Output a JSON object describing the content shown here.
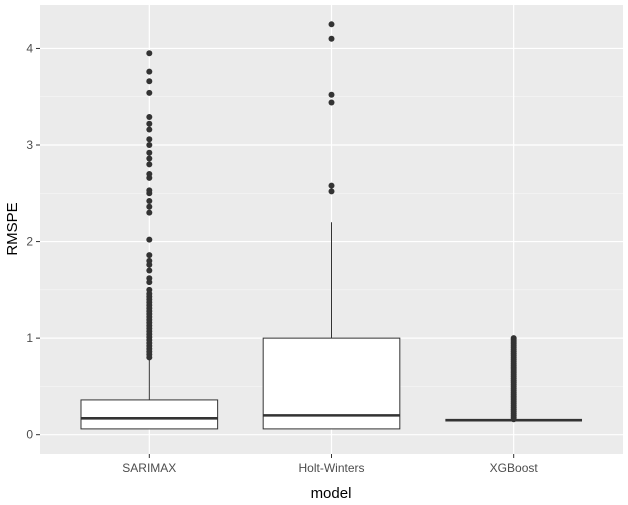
{
  "chart_data": {
    "type": "boxplot",
    "xlabel": "model",
    "ylabel": "RMSPE",
    "categories": [
      "SARIMAX",
      "Holt-Winters",
      "XGBoost"
    ],
    "ylim": [
      -0.2,
      4.45
    ],
    "yticks": [
      0,
      1,
      2,
      3,
      4
    ],
    "grid": true,
    "legend": "none",
    "colors": {
      "panel": "#ebebeb",
      "grid_major": "#ffffff",
      "box_fill": "#ffffff",
      "box_line": "#333333",
      "outlier": "#333333",
      "tick_text": "#4d4d4d"
    },
    "boxes": [
      {
        "category": "SARIMAX",
        "whisker_low": 0.06,
        "q1": 0.06,
        "median": 0.17,
        "q3": 0.36,
        "whisker_high": 0.78,
        "outliers": [
          0.8,
          0.83,
          0.86,
          0.89,
          0.92,
          0.95,
          0.98,
          1.01,
          1.04,
          1.07,
          1.1,
          1.13,
          1.16,
          1.19,
          1.22,
          1.25,
          1.28,
          1.31,
          1.34,
          1.37,
          1.4,
          1.43,
          1.46,
          1.5,
          1.58,
          1.62,
          1.7,
          1.76,
          1.8,
          1.86,
          2.02,
          2.3,
          2.36,
          2.42,
          2.5,
          2.53,
          2.66,
          2.7,
          2.8,
          2.86,
          2.92,
          3.0,
          3.06,
          3.16,
          3.22,
          3.29,
          3.54,
          3.66,
          3.76,
          3.95
        ]
      },
      {
        "category": "Holt-Winters",
        "whisker_low": 0.06,
        "q1": 0.06,
        "median": 0.2,
        "q3": 1.0,
        "whisker_high": 2.2,
        "outliers": [
          2.52,
          2.58,
          3.44,
          3.52,
          4.1,
          4.25
        ]
      },
      {
        "category": "XGBoost",
        "whisker_low": 0.15,
        "q1": 0.15,
        "median": 0.15,
        "q3": 0.15,
        "whisker_high": 0.15,
        "outliers": [
          0.16,
          0.18,
          0.2,
          0.22,
          0.24,
          0.26,
          0.28,
          0.3,
          0.32,
          0.34,
          0.36,
          0.38,
          0.4,
          0.42,
          0.44,
          0.46,
          0.48,
          0.5,
          0.52,
          0.54,
          0.56,
          0.58,
          0.6,
          0.62,
          0.64,
          0.66,
          0.68,
          0.7,
          0.72,
          0.74,
          0.76,
          0.78,
          0.8,
          0.82,
          0.84,
          0.86,
          0.88,
          0.9,
          0.92,
          0.94,
          0.96,
          0.98,
          1.0
        ]
      }
    ]
  }
}
